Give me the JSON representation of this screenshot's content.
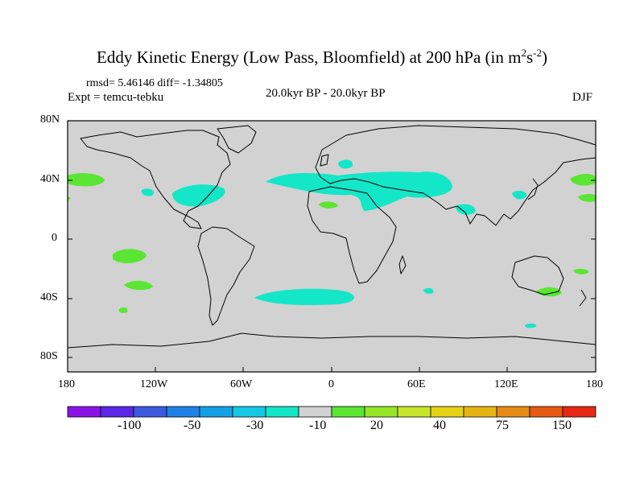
{
  "title": {
    "main": "Eddy Kinetic Energy (Low Pass, Bloomfield) at 200 hPa (in m",
    "sup1": "2",
    "mid": "s",
    "sup2": "-2",
    "close": ")"
  },
  "stats": "rmsd= 5.46146 diff= -1.34805",
  "experiment": "Expt = temcu-tebku",
  "period": "20.0kyr BP - 20.0kyr BP",
  "season": "DJF",
  "axes": {
    "lat_labels": [
      "80N",
      "40N",
      "0",
      "40S",
      "80S"
    ],
    "lon_labels": [
      "180",
      "120W",
      "60W",
      "0",
      "60E",
      "120E",
      "180"
    ]
  },
  "colorbar": {
    "colors": [
      "#8a14e8",
      "#5a28e6",
      "#3c5ae0",
      "#1e82e8",
      "#14a0e6",
      "#14c8e6",
      "#14e6c8",
      "#d2d2d2",
      "#5ae632",
      "#96e628",
      "#c8e628",
      "#e6d214",
      "#e6b414",
      "#e68c14",
      "#e65a14",
      "#e62814"
    ],
    "labels": [
      "-100",
      "-50",
      "-30",
      "-10",
      "20",
      "40",
      "75",
      "150"
    ]
  },
  "map_colors": {
    "ocean": "#d2d2d2",
    "negative": "#14e6c8",
    "positive": "#5ae632"
  }
}
